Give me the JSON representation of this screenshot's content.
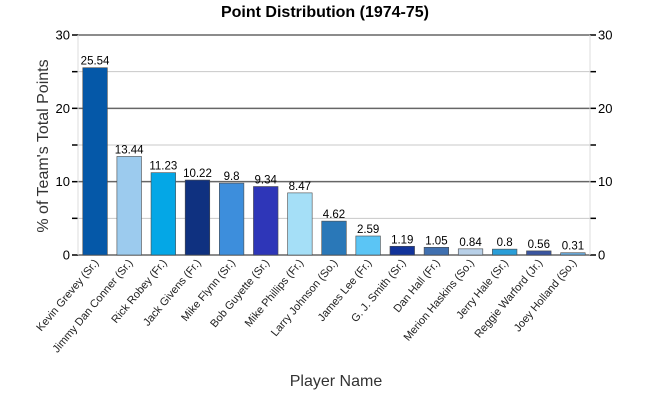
{
  "chart_data": {
    "type": "bar",
    "title": "Point Distribution (1974-75)",
    "xlabel": "Player Name",
    "ylabel": "% of Team's Total Points",
    "ylim": [
      0,
      30
    ],
    "yticks": [
      0,
      10,
      20,
      30
    ],
    "grid": true,
    "categories": [
      "Kevin Grevey (Sr.)",
      "Jimmy Dan Conner (Sr.)",
      "Rick Robey (Fr.)",
      "Jack Givens (Fr.)",
      "Mike Flynn (Sr.)",
      "Bob Guyette (Sr.)",
      "Mike Phillips (Fr.)",
      "Larry Johnson (So.)",
      "James Lee (Fr.)",
      "G. J. Smith (Sr.)",
      "Dan Hall (Fr.)",
      "Merion Haskins (So.)",
      "Jerry Hale (Sr.)",
      "Reggie Warford (Jr.)",
      "Joey Holland (So.)"
    ],
    "values": [
      25.54,
      13.44,
      11.23,
      10.22,
      9.8,
      9.34,
      8.47,
      4.62,
      2.59,
      1.19,
      1.05,
      0.84,
      0.8,
      0.56,
      0.31
    ],
    "value_labels": [
      "25.54",
      "13.44",
      "11.23",
      "10.22",
      "9.8",
      "9.34",
      "8.47",
      "4.62",
      "2.59",
      "1.19",
      "1.05",
      "0.84",
      "0.8",
      "0.56",
      "0.31"
    ],
    "colors": [
      "#0558a8",
      "#9ccbee",
      "#04a7e6",
      "#0f3180",
      "#3d8edc",
      "#2e36b8",
      "#a5dff7",
      "#2a78b8",
      "#5bc5f5",
      "#12339a",
      "#4070b0",
      "#b8d0e8",
      "#2a9ed8",
      "#3a55a0",
      "#6aa8d8"
    ]
  }
}
